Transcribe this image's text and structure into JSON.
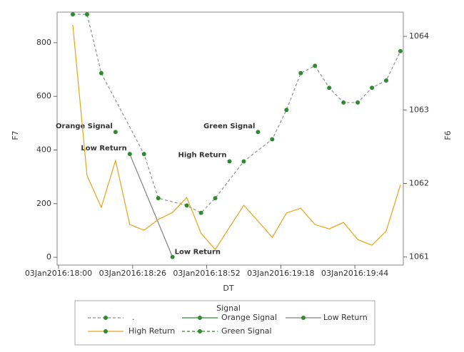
{
  "chart_data": {
    "type": "line",
    "x_label": "DT",
    "y_label": "F7",
    "y2_label": "F6",
    "xlim": [
      -0.5,
      121
    ],
    "xticks": [
      {
        "value": 0,
        "label": "03Jan2016:18:00"
      },
      {
        "value": 26,
        "label": "03Jan2016:18:26"
      },
      {
        "value": 52,
        "label": "03Jan2016:18:52"
      },
      {
        "value": 78,
        "label": "03Jan2016:19:18"
      },
      {
        "value": 104,
        "label": "03Jan2016:19:44"
      }
    ],
    "ylim": [
      -29,
      914
    ],
    "yticks": [
      0,
      200,
      400,
      600,
      800
    ],
    "y2lim": [
      1060.89,
      1064.33
    ],
    "y2ticks": [
      1061,
      1062,
      1063,
      1064
    ],
    "legend_title": "Signal",
    "series": [
      {
        "name": ".",
        "axis": "y2",
        "color": "#909090",
        "marker_color": "#2e8b2e",
        "dash": true,
        "x": [
          5,
          10,
          15,
          30,
          35,
          45,
          50,
          55,
          65,
          75,
          80,
          85,
          90,
          95,
          100,
          105,
          110,
          115,
          120
        ],
        "values": [
          1064.3,
          1064.3,
          1063.5,
          1062.4,
          1061.8,
          1061.7,
          1061.6,
          1061.8,
          1062.3,
          1062.6,
          1063.0,
          1063.5,
          1063.6,
          1063.3,
          1063.1,
          1063.1,
          1063.3,
          1063.4,
          1063.8
        ]
      },
      {
        "name": "Orange Signal",
        "axis": "y2",
        "color": "#2e8b2e",
        "marker_color": "#2e8b2e",
        "dash": false,
        "label_color": "#2e8b2e",
        "x": [
          20
        ],
        "values": [
          1062.7
        ]
      },
      {
        "name": "Low Return",
        "axis": "y2",
        "color": "#808080",
        "marker_color": "#2e8b2e",
        "dash": false,
        "label_color": "#707070",
        "x": [
          25,
          40
        ],
        "values": [
          1062.4,
          1061.0
        ]
      },
      {
        "name": "High Return",
        "axis": "y2",
        "color": "#e8a317",
        "marker_color": "#2e8b2e",
        "dash": false,
        "label_color": "#e8a317",
        "x": [
          60
        ],
        "values": [
          1062.3
        ]
      },
      {
        "name": "Green Signal",
        "axis": "y2",
        "color": "#2e8b2e",
        "marker_color": "#2e8b2e",
        "dash": true,
        "label_color": "#2e8b2e",
        "x": [
          70
        ],
        "values": [
          1062.7
        ]
      },
      {
        "axis": "y",
        "color": "#e8a317",
        "dash": false,
        "x": [
          5,
          10,
          15,
          20,
          25,
          30,
          35,
          40,
          45,
          50,
          55,
          60,
          65,
          70,
          75,
          80,
          85,
          90,
          95,
          100,
          105,
          110,
          115,
          120
        ],
        "values": [
          866,
          305,
          186,
          361,
          122,
          101,
          141,
          167,
          223,
          90,
          29,
          112,
          194,
          135,
          74,
          165,
          183,
          122,
          106,
          130,
          66,
          45,
          98,
          270
        ]
      }
    ]
  }
}
